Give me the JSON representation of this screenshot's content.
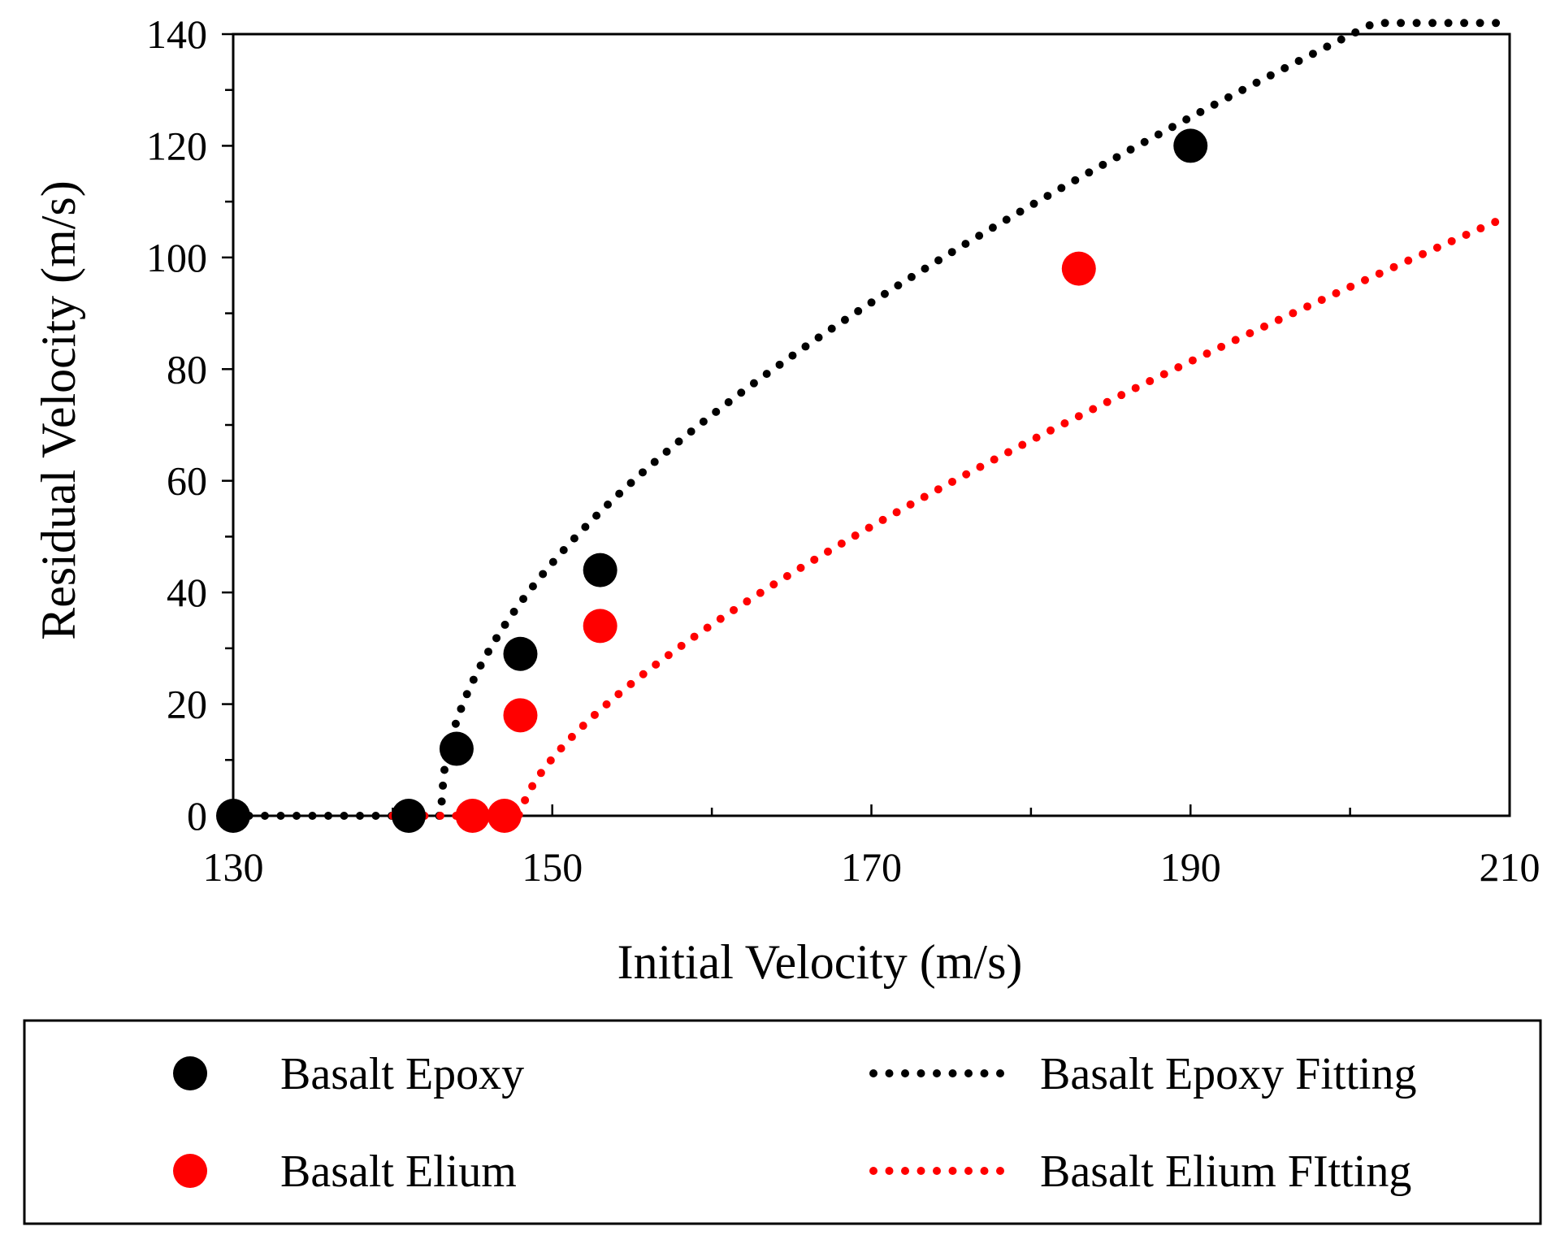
{
  "chart_data": {
    "type": "scatter",
    "title": "",
    "xlabel": "Initial Velocity (m/s)",
    "ylabel": "Residual Velocity (m/s)",
    "xlim": [
      130,
      210
    ],
    "ylim": [
      0,
      140
    ],
    "x_ticks": [
      130,
      150,
      170,
      190,
      210
    ],
    "y_ticks": [
      0,
      20,
      40,
      60,
      80,
      100,
      120,
      140
    ],
    "grid": false,
    "legend_position": "bottom",
    "series": [
      {
        "name": "Basalt Epoxy",
        "kind": "markers",
        "color": "#000000",
        "points": [
          [
            130,
            0
          ],
          [
            141,
            0
          ],
          [
            144,
            12
          ],
          [
            148,
            29
          ],
          [
            153,
            44
          ],
          [
            190,
            120
          ]
        ]
      },
      {
        "name": "Basalt Elium",
        "kind": "markers",
        "color": "#ff0000",
        "points": [
          [
            145,
            0
          ],
          [
            147,
            0
          ],
          [
            148,
            18
          ],
          [
            153,
            34
          ],
          [
            183,
            98
          ]
        ]
      },
      {
        "name": "Basalt Epoxy Fitting",
        "kind": "dotted-line",
        "color": "#000000",
        "model": "lambert-jonas",
        "ballistic_limit": 143,
        "a": 1.0,
        "p": 2.0,
        "x_start": 130,
        "x_end": 210
      },
      {
        "name": "Basalt Elium FItting",
        "kind": "dotted-line",
        "color": "#ff0000",
        "model": "lambert-jonas",
        "ballistic_limit": 148,
        "a": 0.93,
        "p": 1.5,
        "x_start": 140,
        "x_end": 210
      }
    ]
  },
  "legend": {
    "basalt_epoxy": "Basalt Epoxy",
    "basalt_elium": "Basalt Elium",
    "basalt_epoxy_fitting": "Basalt Epoxy Fitting",
    "basalt_elium_fitting": "Basalt Elium FItting"
  }
}
